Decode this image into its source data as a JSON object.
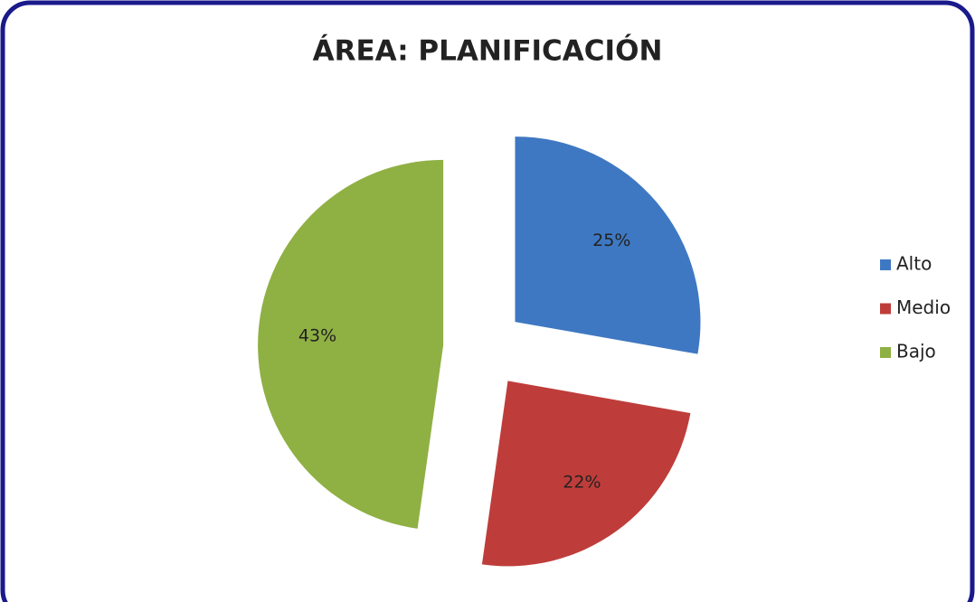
{
  "chart_data": {
    "type": "pie",
    "title": "ÁREA: PLANIFICACIÓN",
    "categories": [
      "Alto",
      "Medio",
      "Bajo"
    ],
    "values": [
      25,
      22,
      43
    ],
    "value_labels": [
      "25%",
      "22%",
      "43%"
    ],
    "colors": [
      "#3f78c2",
      "#be3d3a",
      "#8fb043"
    ],
    "legend": "right"
  }
}
